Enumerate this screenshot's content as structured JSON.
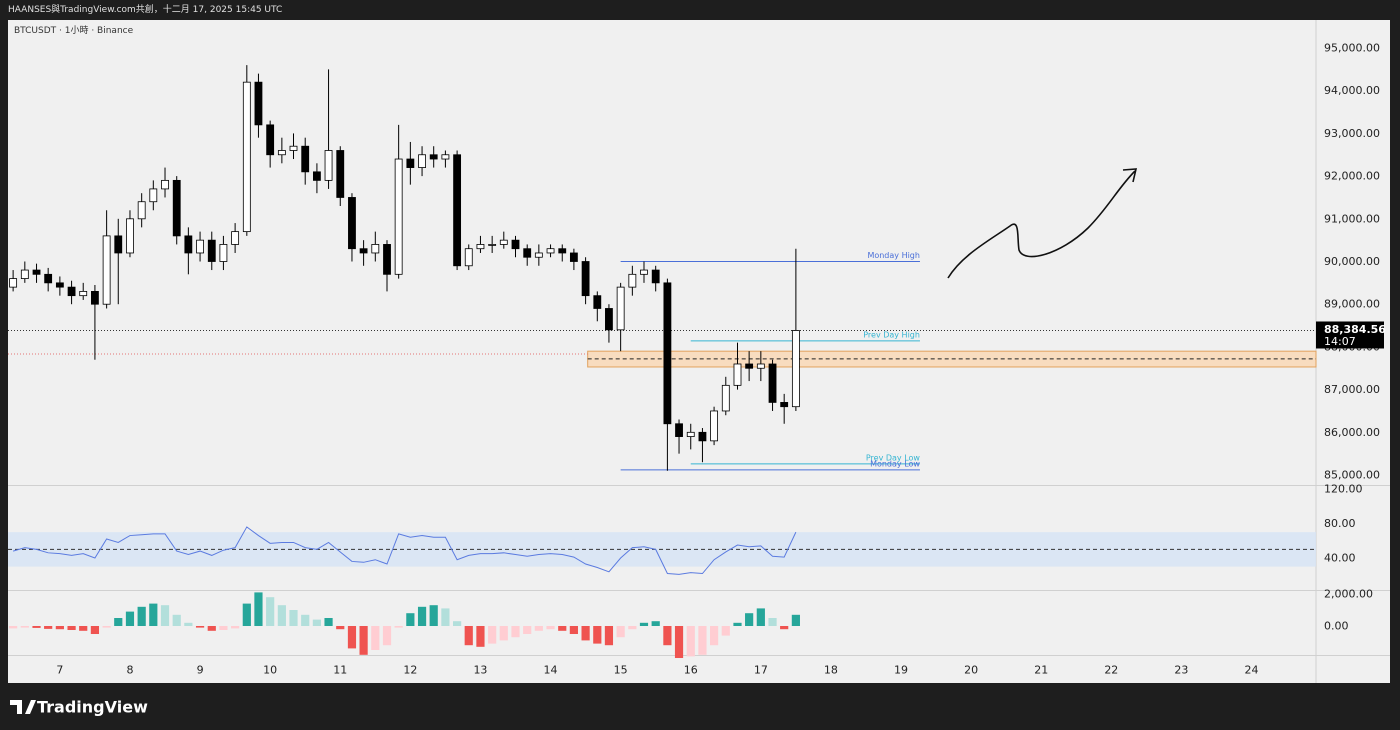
{
  "header": {
    "title": "HAANSES與TradingView.com共創，十二月 17, 2025 15:45 UTC"
  },
  "chart_data": [
    {
      "type": "candlestick",
      "title": "BTCUSDT · 1小時 · Binance",
      "x": [
        6.333,
        6.5,
        6.667,
        6.833,
        7,
        7.167,
        7.333,
        7.5,
        7.667,
        7.833,
        8,
        8.167,
        8.333,
        8.5,
        8.667,
        8.833,
        9,
        9.167,
        9.333,
        9.5,
        9.667,
        9.833,
        10,
        10.167,
        10.333,
        10.5,
        10.667,
        10.833,
        11,
        11.167,
        11.333,
        11.5,
        11.667,
        11.833,
        12,
        12.167,
        12.333,
        12.5,
        12.667,
        12.833,
        13,
        13.167,
        13.333,
        13.5,
        13.667,
        13.833,
        14,
        14.167,
        14.333,
        14.5,
        14.667,
        14.833,
        15,
        15.167,
        15.333,
        15.5,
        15.667,
        15.833,
        16,
        16.167,
        16.333,
        16.5,
        16.667,
        16.833,
        17,
        17.167,
        17.333,
        17.5
      ],
      "open": [
        89400,
        89600,
        89800,
        89700,
        89500,
        89400,
        89200,
        89300,
        89000,
        90600,
        90200,
        91000,
        91400,
        91700,
        91900,
        90600,
        90200,
        90500,
        90000,
        90400,
        90700,
        94200,
        93200,
        92500,
        92600,
        92700,
        92100,
        91900,
        92600,
        91500,
        90300,
        90200,
        90400,
        89700,
        92400,
        92200,
        92500,
        92400,
        92500,
        89900,
        90300,
        90400,
        90400,
        90500,
        90300,
        90100,
        90200,
        90300,
        90200,
        90000,
        89200,
        88900,
        88400,
        89400,
        89700,
        89800,
        89500,
        86200,
        85900,
        86000,
        85800,
        86500,
        87100,
        87600,
        87500,
        87600,
        86700,
        86600
      ],
      "high": [
        89800,
        90000,
        89950,
        89850,
        89650,
        89550,
        89500,
        89450,
        91200,
        91000,
        91200,
        91600,
        91900,
        92200,
        92000,
        90800,
        90700,
        90700,
        90600,
        90900,
        94600,
        94400,
        93300,
        92900,
        93000,
        92900,
        92300,
        94500,
        92700,
        91600,
        90500,
        90700,
        90500,
        93200,
        92800,
        92700,
        92700,
        92600,
        92600,
        90400,
        90600,
        90600,
        90700,
        90600,
        90400,
        90400,
        90400,
        90400,
        90300,
        90100,
        89300,
        89000,
        89500,
        89900,
        90000,
        89900,
        89600,
        86300,
        86200,
        86100,
        86600,
        87300,
        88100,
        87900,
        87900,
        87700,
        86900,
        90300
      ],
      "low": [
        89300,
        89500,
        89500,
        89300,
        89200,
        89000,
        89100,
        87700,
        88900,
        89000,
        90100,
        90800,
        91200,
        91500,
        90400,
        89700,
        90000,
        89800,
        89800,
        90200,
        90600,
        92900,
        92200,
        92300,
        92400,
        91800,
        91600,
        91700,
        91300,
        90000,
        89900,
        90000,
        89300,
        89600,
        91800,
        92000,
        92200,
        92200,
        89800,
        89800,
        90200,
        90200,
        90300,
        90100,
        89900,
        89900,
        90100,
        90000,
        89800,
        89000,
        88600,
        88100,
        87900,
        89200,
        89500,
        89300,
        85100,
        85500,
        85600,
        85300,
        85700,
        86400,
        87000,
        87200,
        87200,
        86500,
        86200,
        86500
      ],
      "close": [
        89600,
        89800,
        89700,
        89500,
        89400,
        89200,
        89300,
        89000,
        90600,
        90200,
        91000,
        91400,
        91700,
        91900,
        90600,
        90200,
        90500,
        90000,
        90400,
        90700,
        94200,
        93200,
        92500,
        92600,
        92700,
        92100,
        91900,
        92600,
        91500,
        90300,
        90200,
        90400,
        89700,
        92400,
        92200,
        92500,
        92400,
        92500,
        89900,
        90300,
        90400,
        90400,
        90500,
        90300,
        90100,
        90200,
        90300,
        90200,
        90000,
        89200,
        88900,
        88400,
        89400,
        89700,
        89800,
        89500,
        86200,
        85900,
        86000,
        85800,
        86500,
        87100,
        87600,
        87500,
        87600,
        86700,
        86600,
        88384.56
      ],
      "up_color": "#ffffff",
      "down_color": "#000000",
      "edge_color": "#000000",
      "xlim": [
        6.26,
        24.92
      ],
      "ylim": [
        84766,
        95656
      ],
      "yticks": [
        {
          "value": 85000,
          "label": "85,000.00"
        },
        {
          "value": 86000,
          "label": "86,000.00"
        },
        {
          "value": 87000,
          "label": "87,000.00"
        },
        {
          "value": 88000,
          "label": "88,000.00"
        },
        {
          "value": 89000,
          "label": "89,000.00"
        },
        {
          "value": 90000,
          "label": "90,000.00"
        },
        {
          "value": 91000,
          "label": "91,000.00"
        },
        {
          "value": 92000,
          "label": "92,000.00"
        },
        {
          "value": 93000,
          "label": "93,000.00"
        },
        {
          "value": 94000,
          "label": "94,000.00"
        },
        {
          "value": 95000,
          "label": "95,000.00"
        }
      ],
      "last_price": {
        "value": 88384.56,
        "label": "88,384.56",
        "countdown": "14:07"
      },
      "prev_close": 87834,
      "zone": {
        "low": 87530,
        "high": 87900,
        "mid": 87720,
        "x_start": 14.53,
        "color": "#f8dcbf",
        "edge": "#e2a25e"
      },
      "levels": [
        {
          "name": "Monday High",
          "value": 90000,
          "x": [
            15,
            19.27
          ],
          "color": "#4a6fd8"
        },
        {
          "name": "Prev Day High",
          "value": 88140,
          "x": [
            16,
            19.27
          ],
          "color": "#36b5d2"
        },
        {
          "name": "Prev Day Low",
          "value": 85260,
          "x": [
            16,
            19.27
          ],
          "color": "#36b5d2"
        },
        {
          "name": "Monday Low",
          "value": 85120,
          "x": [
            15,
            19.27
          ],
          "color": "#4a6fd8"
        }
      ]
    },
    {
      "type": "line",
      "x": [
        6.333,
        6.5,
        6.667,
        6.833,
        7,
        7.167,
        7.333,
        7.5,
        7.667,
        7.833,
        8,
        8.167,
        8.333,
        8.5,
        8.667,
        8.833,
        9,
        9.167,
        9.333,
        9.5,
        9.667,
        9.833,
        10,
        10.167,
        10.333,
        10.5,
        10.667,
        10.833,
        11,
        11.167,
        11.333,
        11.5,
        11.667,
        11.833,
        12,
        12.167,
        12.333,
        12.5,
        12.667,
        12.833,
        13,
        13.167,
        13.333,
        13.5,
        13.667,
        13.833,
        14,
        14.167,
        14.333,
        14.5,
        14.667,
        14.833,
        15,
        15.167,
        15.333,
        15.5,
        15.667,
        15.833,
        16,
        16.167,
        16.333,
        16.5,
        16.667,
        16.833,
        17,
        17.167,
        17.333,
        17.5
      ],
      "values": [
        48,
        52,
        50,
        46,
        45,
        43,
        45,
        40,
        62,
        58,
        66,
        67,
        68,
        68,
        48,
        44,
        48,
        43,
        49,
        52,
        76,
        66,
        57,
        58,
        58,
        52,
        50,
        58,
        47,
        36,
        35,
        38,
        33,
        68,
        64,
        66,
        64,
        64,
        38,
        43,
        45,
        45,
        46,
        44,
        42,
        44,
        45,
        44,
        41,
        33,
        29,
        24,
        40,
        52,
        53,
        50,
        22,
        21,
        23,
        22,
        38,
        47,
        55,
        53,
        54,
        42,
        41,
        70
      ],
      "color": "#5b7be0",
      "xlim": [
        6.26,
        24.92
      ],
      "ylim": [
        2.9,
        124.6
      ],
      "yticks": [
        {
          "value": 40,
          "label": "40.00"
        },
        {
          "value": 80,
          "label": "80.00"
        },
        {
          "value": 120,
          "label": "120.00"
        }
      ],
      "band": [
        30,
        70
      ],
      "band_color": "#d6e4f5",
      "midline": 50
    },
    {
      "type": "bar",
      "x": [
        6.333,
        6.5,
        6.667,
        6.833,
        7,
        7.167,
        7.333,
        7.5,
        7.667,
        7.833,
        8,
        8.167,
        8.333,
        8.5,
        8.667,
        8.833,
        9,
        9.167,
        9.333,
        9.5,
        9.667,
        9.833,
        10,
        10.167,
        10.333,
        10.5,
        10.667,
        10.833,
        11,
        11.167,
        11.333,
        11.5,
        11.667,
        11.833,
        12,
        12.167,
        12.333,
        12.5,
        12.667,
        12.833,
        13,
        13.167,
        13.333,
        13.5,
        13.667,
        13.833,
        14,
        14.167,
        14.333,
        14.5,
        14.667,
        14.833,
        15,
        15.167,
        15.333,
        15.5,
        15.667,
        15.833,
        16,
        16.167,
        16.333,
        16.5,
        16.667,
        16.833,
        17,
        17.167,
        17.333,
        17.5
      ],
      "values": [
        -150,
        -100,
        -120,
        -180,
        -200,
        -250,
        -300,
        -500,
        -100,
        500,
        900,
        1200,
        1400,
        1300,
        700,
        200,
        -100,
        -300,
        -250,
        -150,
        1400,
        2100,
        1800,
        1300,
        1000,
        700,
        400,
        500,
        -200,
        -1400,
        -1800,
        -1500,
        -1200,
        -100,
        800,
        1200,
        1300,
        1100,
        300,
        -1200,
        -1300,
        -1100,
        -900,
        -700,
        -500,
        -300,
        -200,
        -300,
        -500,
        -900,
        -1100,
        -1200,
        -700,
        -200,
        200,
        300,
        -1200,
        -2000,
        -1900,
        -1800,
        -1200,
        -600,
        200,
        800,
        1100,
        500,
        -200,
        700
      ],
      "colors": {
        "pos_rise": "#26a69a",
        "pos_fall": "#b2dfdb",
        "neg_rise": "#ffcdd2",
        "neg_fall": "#ef5350"
      },
      "xlim": [
        6.26,
        24.92
      ],
      "ylim": [
        -1812,
        2250
      ],
      "yticks": [
        {
          "value": 0,
          "label": "0.00"
        },
        {
          "value": 2000,
          "label": "2,000.00"
        }
      ],
      "xticks": [
        7,
        8,
        9,
        10,
        11,
        12,
        13,
        14,
        15,
        16,
        17,
        18,
        19,
        20,
        21,
        22,
        23,
        24
      ]
    }
  ],
  "footer": {
    "brand": "TradingView"
  }
}
